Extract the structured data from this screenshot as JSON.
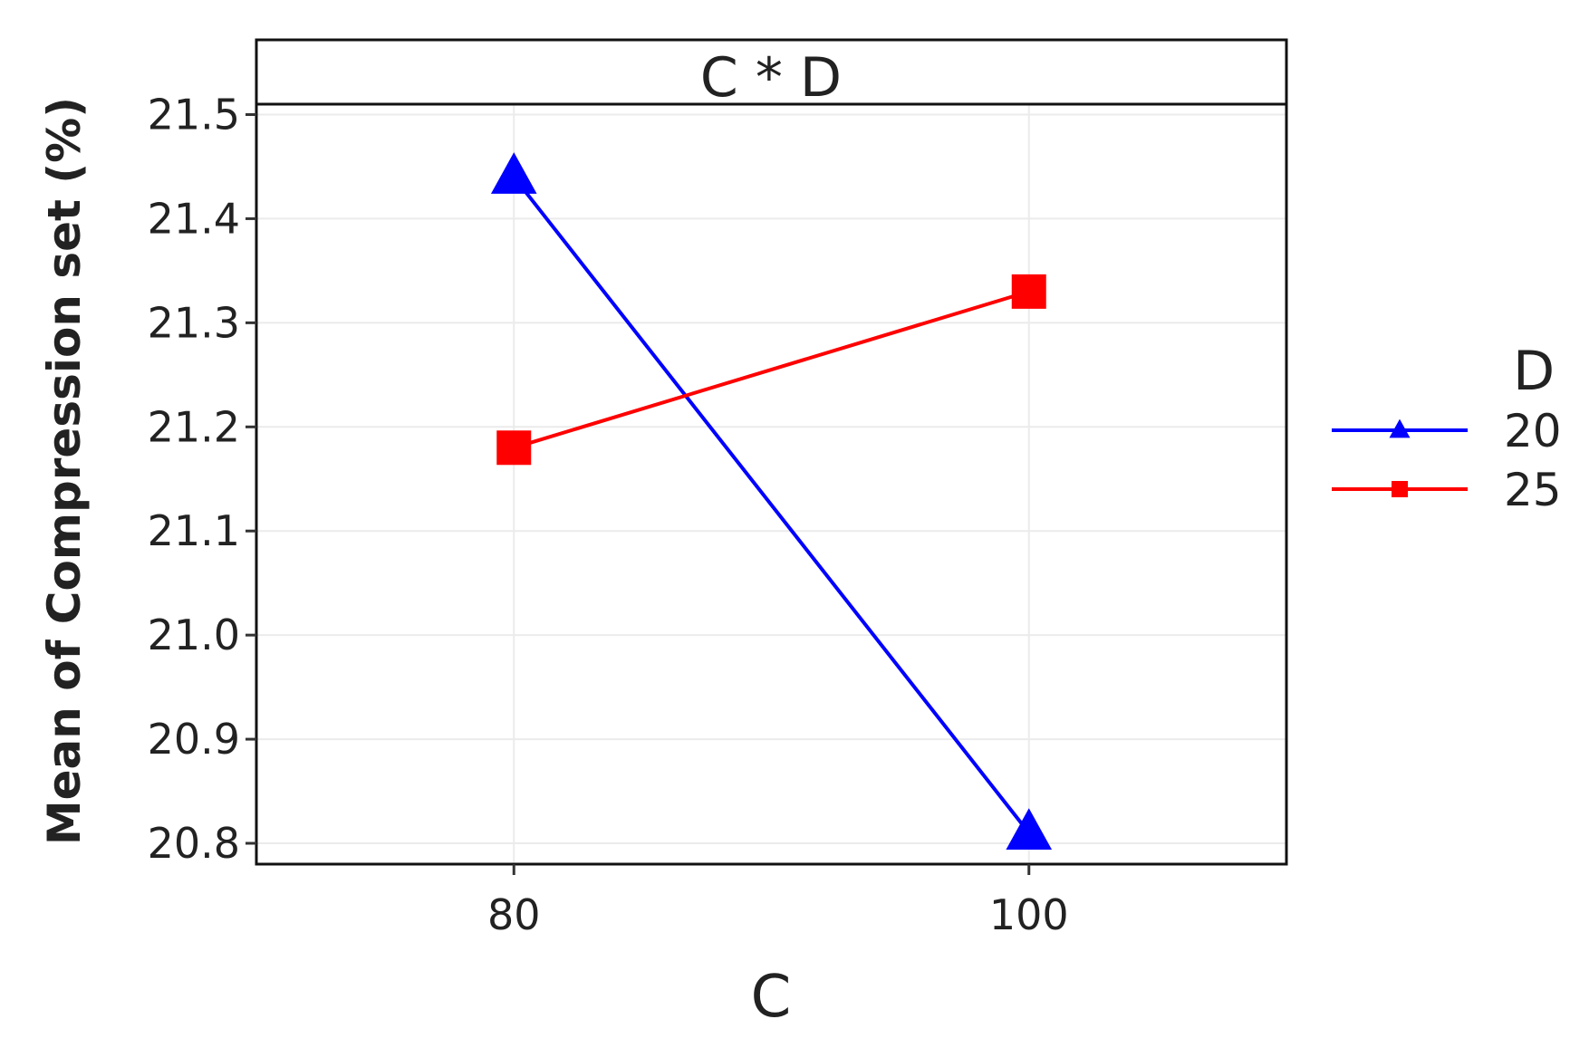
{
  "chart_data": {
    "type": "line",
    "title": "C * D",
    "xlabel": "C",
    "ylabel": "Mean of Compression set (%)",
    "categories": [
      "80",
      "100"
    ],
    "x": [
      80,
      100
    ],
    "xlim": [
      70,
      110
    ],
    "ylim": [
      20.78,
      21.51
    ],
    "yticks": [
      "20.8",
      "20.9",
      "21.0",
      "21.1",
      "21.2",
      "21.3",
      "21.4",
      "21.5"
    ],
    "ytick_values": [
      20.8,
      20.9,
      21.0,
      21.1,
      21.2,
      21.3,
      21.4,
      21.5
    ],
    "grid": true,
    "legend": {
      "title": "D",
      "placement": "right"
    },
    "series": [
      {
        "name": "20",
        "values": [
          21.44,
          20.81
        ],
        "color": "#0000ff",
        "marker": "triangle"
      },
      {
        "name": "25",
        "values": [
          21.18,
          21.33
        ],
        "color": "#ff0000",
        "marker": "square"
      }
    ]
  }
}
